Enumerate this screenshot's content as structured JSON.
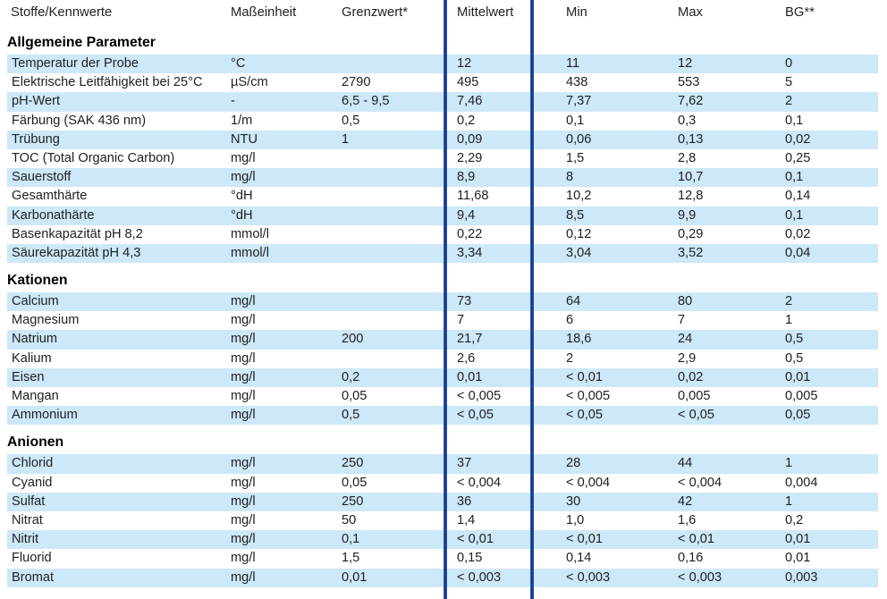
{
  "table": {
    "columns": [
      "Stoffe/Kennwerte",
      "Maßeinheit",
      "Grenzwert*",
      "Mittelwert",
      "Min",
      "Max",
      "BG**"
    ],
    "sections": [
      {
        "title": "Allgemeine Parameter",
        "rows": [
          [
            "Temperatur der Probe",
            "°C",
            "",
            "12",
            "11",
            "12",
            "0"
          ],
          [
            "Elektrische Leitfähigkeit bei 25°C",
            "µS/cm",
            "2790",
            "495",
            "438",
            "553",
            "5"
          ],
          [
            "pH-Wert",
            "-",
            "6,5 - 9,5",
            "7,46",
            "7,37",
            "7,62",
            "2"
          ],
          [
            "Färbung (SAK 436 nm)",
            "1/m",
            "0,5",
            "0,2",
            "0,1",
            "0,3",
            "0,1"
          ],
          [
            "Trübung",
            "NTU",
            "1",
            "0,09",
            "0,06",
            "0,13",
            "0,02"
          ],
          [
            "TOC (Total Organic Carbon)",
            "mg/l",
            "",
            "2,29",
            "1,5",
            "2,8",
            "0,25"
          ],
          [
            "Sauerstoff",
            "mg/l",
            "",
            "8,9",
            "8",
            "10,7",
            "0,1"
          ],
          [
            "Gesamthärte",
            "°dH",
            "",
            "11,68",
            "10,2",
            "12,8",
            "0,14"
          ],
          [
            "Karbonathärte",
            "°dH",
            "",
            "9,4",
            "8,5",
            "9,9",
            "0,1"
          ],
          [
            "Basenkapazität pH 8,2",
            "mmol/l",
            "",
            "0,22",
            "0,12",
            "0,29",
            "0,02"
          ],
          [
            "Säurekapazität pH 4,3",
            "mmol/l",
            "",
            "3,34",
            "3,04",
            "3,52",
            "0,04"
          ]
        ]
      },
      {
        "title": "Kationen",
        "rows": [
          [
            "Calcium",
            "mg/l",
            "",
            "73",
            "64",
            "80",
            "2"
          ],
          [
            "Magnesium",
            "mg/l",
            "",
            "7",
            "6",
            "7",
            "1"
          ],
          [
            "Natrium",
            "mg/l",
            "200",
            "21,7",
            "18,6",
            "24",
            "0,5"
          ],
          [
            "Kalium",
            "mg/l",
            "",
            "2,6",
            "2",
            "2,9",
            "0,5"
          ],
          [
            "Eisen",
            "mg/l",
            "0,2",
            "0,01",
            "< 0,01",
            "0,02",
            "0,01"
          ],
          [
            "Mangan",
            "mg/l",
            "0,05",
            "< 0,005",
            "< 0,005",
            "0,005",
            "0,005"
          ],
          [
            "Ammonium",
            "mg/l",
            "0,5",
            "< 0,05",
            "< 0,05",
            "< 0,05",
            "0,05"
          ]
        ]
      },
      {
        "title": "Anionen",
        "rows": [
          [
            "Chlorid",
            "mg/l",
            "250",
            "37",
            "28",
            "44",
            "1"
          ],
          [
            "Cyanid",
            "mg/l",
            "0,05",
            "< 0,004",
            "< 0,004",
            "< 0,004",
            "0,004"
          ],
          [
            "Sulfat",
            "mg/l",
            "250",
            "36",
            "30",
            "42",
            "1"
          ],
          [
            "Nitrat",
            "mg/l",
            "50",
            "1,4",
            "1,0",
            "1,6",
            "0,2"
          ],
          [
            "Nitrit",
            "mg/l",
            "0,1",
            "< 0,01",
            "< 0,01",
            "< 0,01",
            "0,01"
          ],
          [
            "Fluorid",
            "mg/l",
            "1,5",
            "0,15",
            "0,14",
            "0,16",
            "0,01"
          ],
          [
            "Bromat",
            "mg/l",
            "0,01",
            "< 0,003",
            "< 0,003",
            "< 0,003",
            "0,003"
          ]
        ]
      }
    ]
  },
  "colors": {
    "stripe": "#cde8f8",
    "divider": "#143c90",
    "text": "#1f1f1f"
  }
}
